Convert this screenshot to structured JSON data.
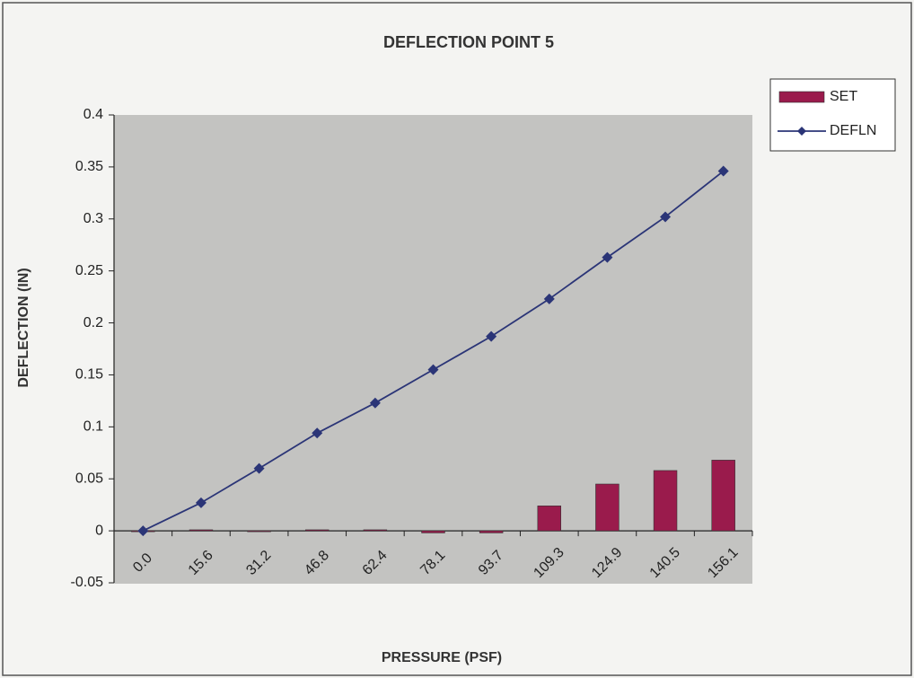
{
  "chart_data": {
    "type": "combo",
    "title": "DEFLECTION  POINT 5",
    "xlabel": "PRESSURE  (PSF)",
    "ylabel": "DEFLECTION  (IN)",
    "categories": [
      "0.0",
      "15.6",
      "31.2",
      "46.8",
      "62.4",
      "78.1",
      "93.7",
      "109.3",
      "124.9",
      "140.5",
      "156.1"
    ],
    "series": [
      {
        "name": "SET",
        "type": "bar",
        "color": "#9a1b4c",
        "values": [
          0,
          0.001,
          0,
          0.001,
          0.001,
          -0.002,
          -0.002,
          0.024,
          0.045,
          0.058,
          0.068
        ]
      },
      {
        "name": "DEFLN",
        "type": "line",
        "color": "#2b3577",
        "values": [
          0,
          0.027,
          0.06,
          0.094,
          0.123,
          0.155,
          0.187,
          0.223,
          0.263,
          0.302,
          0.346
        ]
      }
    ],
    "ylim": [
      -0.05,
      0.4
    ],
    "yticks": [
      -0.05,
      0,
      0.05,
      0.1,
      0.15,
      0.2,
      0.25,
      0.3,
      0.35,
      0.4
    ],
    "grid": false,
    "legend": "right"
  }
}
